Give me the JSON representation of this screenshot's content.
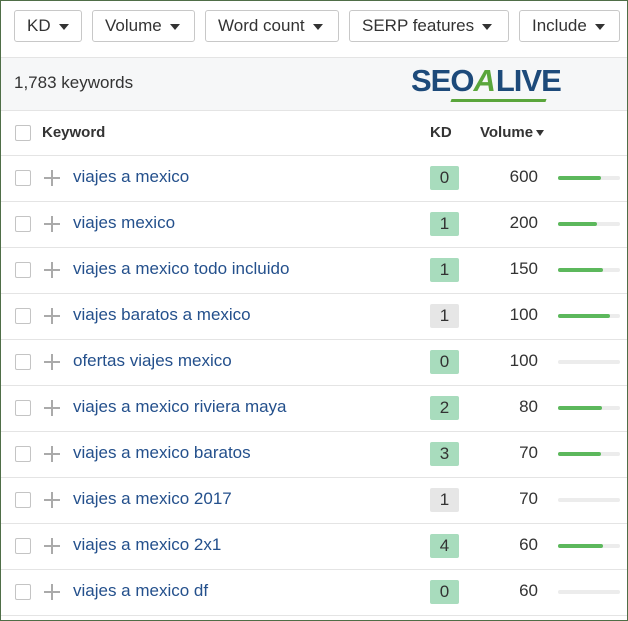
{
  "filters": [
    "KD",
    "Volume",
    "Word count",
    "SERP features",
    "Include"
  ],
  "summary": {
    "count": "1,783 keywords"
  },
  "logo": {
    "parts": [
      "SEO",
      "A",
      "LIVE"
    ]
  },
  "table": {
    "columns": [
      "Keyword",
      "KD",
      "Volume"
    ],
    "rows": [
      {
        "keyword": "viajes a mexico",
        "kd": 0,
        "kd_color": "#a8dcbd",
        "volume": 600,
        "trend": 0.7
      },
      {
        "keyword": "viajes mexico",
        "kd": 1,
        "kd_color": "#a8dcbd",
        "volume": 200,
        "trend": 0.63
      },
      {
        "keyword": "viajes a mexico todo incluido",
        "kd": 1,
        "kd_color": "#a8dcbd",
        "volume": 150,
        "trend": 0.73
      },
      {
        "keyword": "viajes baratos a mexico",
        "kd": 1,
        "kd_color": "#e6e6e6",
        "volume": 100,
        "trend": 0.84
      },
      {
        "keyword": "ofertas viajes mexico",
        "kd": 0,
        "kd_color": "#a8dcbd",
        "volume": 100,
        "trend": 0
      },
      {
        "keyword": "viajes a mexico riviera maya",
        "kd": 2,
        "kd_color": "#a8dcbd",
        "volume": 80,
        "trend": 0.71
      },
      {
        "keyword": "viajes a mexico baratos",
        "kd": 3,
        "kd_color": "#a8dcbd",
        "volume": 70,
        "trend": 0.7
      },
      {
        "keyword": "viajes a mexico 2017",
        "kd": 1,
        "kd_color": "#e6e6e6",
        "volume": 70,
        "trend": 0
      },
      {
        "keyword": "viajes a mexico 2x1",
        "kd": 4,
        "kd_color": "#a8dcbd",
        "volume": 60,
        "trend": 0.73
      },
      {
        "keyword": "viajes a mexico df",
        "kd": 0,
        "kd_color": "#a8dcbd",
        "volume": 60,
        "trend": 0
      }
    ]
  }
}
